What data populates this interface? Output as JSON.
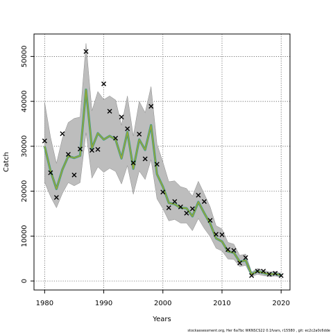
{
  "chart_data": {
    "type": "line",
    "xlabel": "Years",
    "ylabel": "Catch",
    "xlim": [
      1978.2,
      2021.5
    ],
    "ylim": [
      -2000,
      55000
    ],
    "xticks": [
      1980,
      1990,
      2000,
      2010,
      2020
    ],
    "yticks": [
      0,
      10000,
      20000,
      30000,
      40000,
      50000
    ],
    "grid": true,
    "footer": "stockassessment.org, Her 6a7bc WKNSCS22 0.1fvars, r15580 , git: ec2c2a0c6dde",
    "colors": {
      "band": "#bdbdbd",
      "band_edge": "#8a8a8a",
      "line_outer": "#3a9a8a",
      "line_inner": "#9aa832",
      "observed": "#000000"
    },
    "years": [
      1980,
      1981,
      1982,
      1983,
      1984,
      1985,
      1986,
      1987,
      1988,
      1989,
      1990,
      1991,
      1992,
      1993,
      1994,
      1995,
      1996,
      1997,
      1998,
      1999,
      2000,
      2001,
      2002,
      2003,
      2004,
      2005,
      2006,
      2007,
      2008,
      2009,
      2010,
      2011,
      2012,
      2013,
      2014,
      2015,
      2016,
      2017,
      2018,
      2019,
      2020
    ],
    "estimated": [
      30000,
      24500,
      20500,
      24800,
      27800,
      27400,
      27900,
      42600,
      29600,
      32900,
      31500,
      32300,
      31500,
      27300,
      33200,
      25000,
      31500,
      29200,
      34700,
      23800,
      21000,
      17400,
      17100,
      16300,
      16200,
      14400,
      17600,
      15100,
      12800,
      9500,
      8800,
      6600,
      6300,
      4300,
      4600,
      1500,
      2200,
      1800,
      1500,
      1600,
      1300
    ],
    "lower": [
      22000,
      18800,
      16300,
      19500,
      21900,
      21200,
      21900,
      33000,
      22900,
      25400,
      24200,
      25100,
      24400,
      21600,
      25700,
      19300,
      24500,
      22600,
      27000,
      18300,
      16100,
      13400,
      13700,
      12900,
      12900,
      11200,
      13900,
      11700,
      9900,
      7300,
      6700,
      4900,
      4800,
      3200,
      3500,
      1000,
      1500,
      1200,
      1000,
      1100,
      900
    ],
    "upper": [
      39800,
      32000,
      26200,
      31800,
      35300,
      36200,
      36500,
      52900,
      37900,
      42200,
      40400,
      41200,
      40300,
      34700,
      41200,
      32300,
      40000,
      37500,
      43300,
      30500,
      26500,
      22100,
      22300,
      21000,
      20600,
      18900,
      22200,
      19400,
      16500,
      12300,
      11600,
      8600,
      8200,
      5700,
      6000,
      2000,
      2800,
      2400,
      2000,
      2100,
      1700
    ],
    "observed": [
      31200,
      24100,
      18600,
      32800,
      28200,
      23600,
      29400,
      51100,
      29100,
      29300,
      43900,
      37800,
      31800,
      36500,
      33900,
      26300,
      32700,
      27200,
      38900,
      26000,
      19800,
      16300,
      17700,
      16500,
      15100,
      16100,
      19100,
      17700,
      13500,
      10400,
      10300,
      7000,
      6800,
      4000,
      5200,
      1200,
      2200,
      2200,
      1500,
      1700,
      1200
    ]
  }
}
